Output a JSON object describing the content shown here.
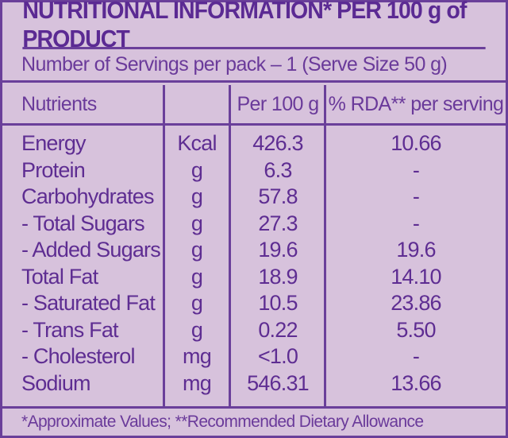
{
  "title": "NUTRITIONAL INFORMATION* PER 100 g of PRODUCT",
  "servings": "Number of Servings per pack – 1 (Serve Size 50 g)",
  "headers": {
    "nutrients": "Nutrients",
    "unit": "",
    "per100": "Per 100 g",
    "rda": "% RDA** per serving"
  },
  "rows": [
    {
      "name": "Energy",
      "unit": "Kcal",
      "per100": "426.3",
      "rda": "10.66"
    },
    {
      "name": "Protein",
      "unit": "g",
      "per100": "6.3",
      "rda": "-"
    },
    {
      "name": "Carbohydrates",
      "unit": "g",
      "per100": "57.8",
      "rda": "-"
    },
    {
      "name": "- Total Sugars",
      "unit": "g",
      "per100": "27.3",
      "rda": "-"
    },
    {
      "name": "- Added Sugars",
      "unit": "g",
      "per100": "19.6",
      "rda": "19.6"
    },
    {
      "name": "Total Fat",
      "unit": "g",
      "per100": "18.9",
      "rda": "14.10"
    },
    {
      "name": "- Saturated Fat",
      "unit": "g",
      "per100": "10.5",
      "rda": "23.86"
    },
    {
      "name": "- Trans Fat",
      "unit": "g",
      "per100": "0.22",
      "rda": "5.50"
    },
    {
      "name": "- Cholesterol",
      "unit": "mg",
      "per100": "<1.0",
      "rda": "-"
    },
    {
      "name": "Sodium",
      "unit": "mg",
      "per100": "546.31",
      "rda": "13.66"
    }
  ],
  "footer": "*Approximate Values;  **Recommended Dietary Allowance"
}
